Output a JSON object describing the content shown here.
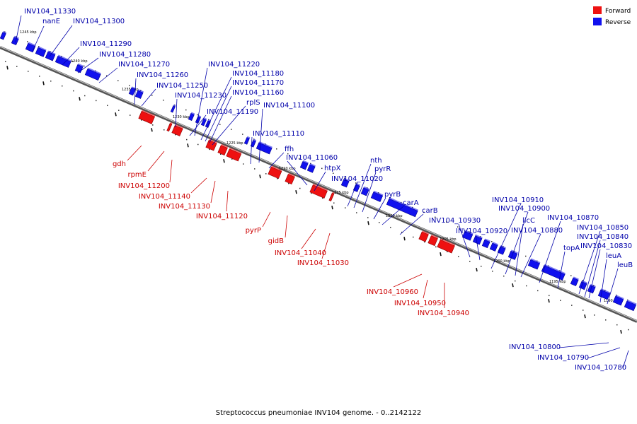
{
  "caption": "Streptococcus pneumoniae INV104 genome. - 0..2142122",
  "legend": [
    {
      "label": "Forward",
      "color": "#ee1111"
    },
    {
      "label": "Reverse",
      "color": "#1111ee"
    }
  ],
  "colors": {
    "forward": "#ee1111",
    "reverse": "#1111ee",
    "forward_label": "#cc0000",
    "reverse_label": "#0000aa"
  },
  "kbp_ticks": [
    "1245 kbp",
    "1240 kbp",
    "1235 kbp",
    "1230 kbp",
    "1225 kbp",
    "1220 kbp",
    "1215 kbp",
    "1210 kbp",
    "1205 kbp",
    "1200 kbp",
    "1195 kbp",
    "1190 kbp"
  ],
  "reverse_labels": [
    "INV104_11330",
    "nanE",
    "INV104_11300",
    "INV104_11290",
    "INV104_11280",
    "INV104_11270",
    "INV104_11260",
    "INV104_11250",
    "INV104_11230",
    "INV104_11220",
    "INV104_11180",
    "INV104_11170",
    "INV104_11160",
    "rplS",
    "INV104_11190",
    "INV104_11100",
    "INV104_11110",
    "ffh",
    "INV104_11060",
    "htpX",
    "nth",
    "pyrR",
    "INV104_11020",
    "pyrB",
    "carA",
    "carB",
    "INV104_10930",
    "INV104_10920",
    "INV104_10910",
    "INV104_10900",
    "licC",
    "INV104_10880",
    "INV104_10870",
    "INV104_10850",
    "INV104_10840",
    "INV104_10830",
    "topA",
    "leuA",
    "leuB",
    "INV104_10800",
    "INV104_10790",
    "INV104_10780"
  ],
  "forward_labels": [
    "gdh",
    "rpmE",
    "INV104_11200",
    "INV104_11140",
    "INV104_11130",
    "INV104_11120",
    "pyrP",
    "gidB",
    "INV104_11040",
    "INV104_11030",
    "INV104_10960",
    "INV104_10950",
    "INV104_10940"
  ]
}
